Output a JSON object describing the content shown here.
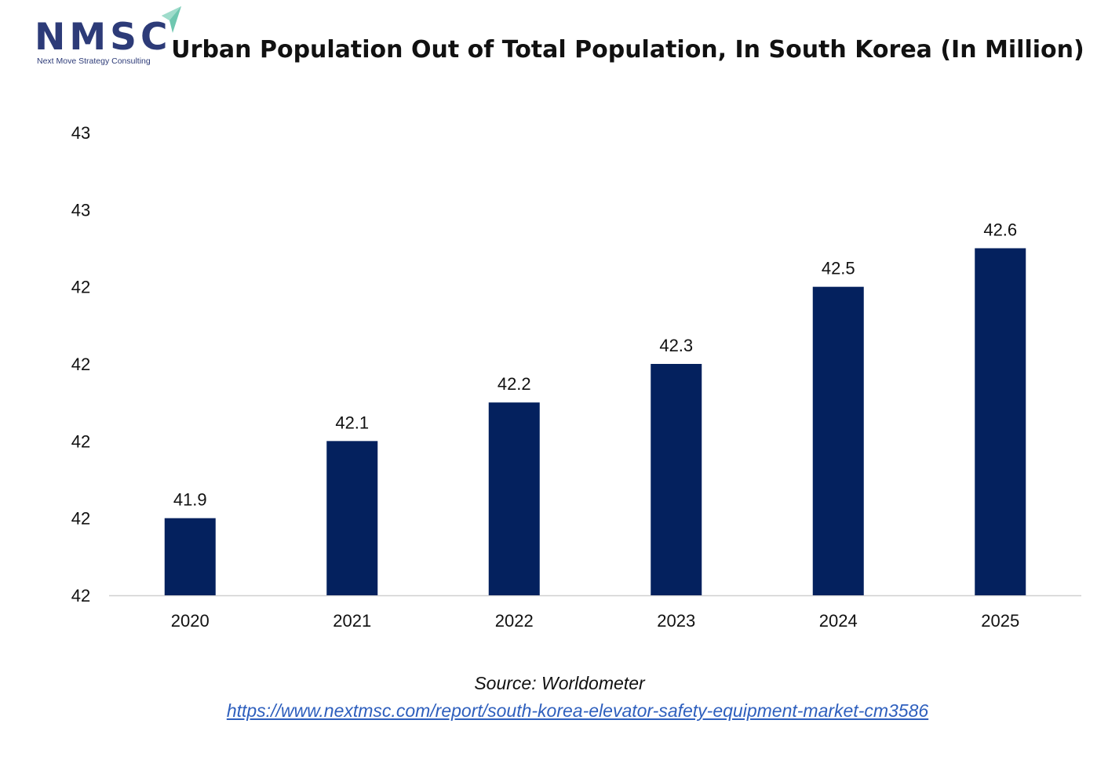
{
  "logo": {
    "wordmark": "NMSC",
    "tagline": "Next Move Strategy Consulting"
  },
  "source": {
    "text": "Source: Worldometer",
    "link": "https://www.nextmsc.com/report/south-korea-elevator-safety-equipment-market-cm3586"
  },
  "colors": {
    "bar": "#04215e",
    "logo_text": "#2d3b78",
    "logo_arrow": "#6fc7b0",
    "link": "#2e5fbd",
    "axis": "#d0d0d0"
  },
  "chart_data": {
    "type": "bar",
    "title": "Urban Population Out of Total Population, In South Korea (In Million)",
    "xlabel": "",
    "ylabel": "",
    "categories": [
      "2020",
      "2021",
      "2022",
      "2023",
      "2024",
      "2025"
    ],
    "values": [
      41.9,
      42.1,
      42.2,
      42.3,
      42.5,
      42.6
    ],
    "data_labels": [
      "41.9",
      "42.1",
      "42.2",
      "42.3",
      "42.5",
      "42.6"
    ],
    "ylim": [
      41.7,
      42.9
    ],
    "yticks": [
      41.7,
      41.9,
      42.1,
      42.3,
      42.5,
      42.7,
      42.9
    ],
    "ytick_labels": [
      "42",
      "42",
      "42",
      "42",
      "42",
      "43",
      "43"
    ],
    "grid": false,
    "legend": "none"
  }
}
